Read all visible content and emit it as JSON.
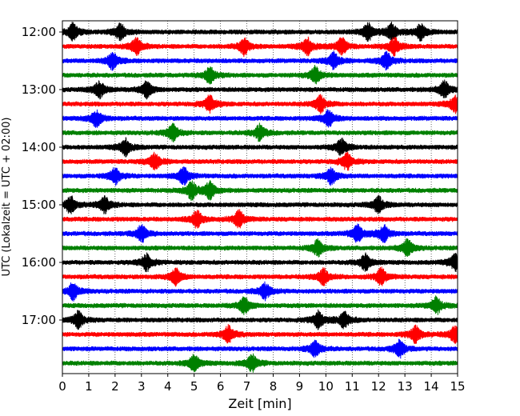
{
  "chart_data": {
    "type": "line",
    "title": "",
    "xlabel": "Zeit  [min]",
    "ylabel": "UTC (Lokalzeit = UTC + 02:00)",
    "xlim": [
      0,
      15
    ],
    "x_ticks": [
      "0",
      "1",
      "2",
      "3",
      "4",
      "5",
      "6",
      "7",
      "8",
      "9",
      "10",
      "11",
      "12",
      "13",
      "14",
      "15"
    ],
    "y_tick_labels": [
      "12:00",
      "13:00",
      "14:00",
      "15:00",
      "16:00",
      "17:00"
    ],
    "trace_start_times": [
      "12:00",
      "12:15",
      "12:30",
      "12:45",
      "13:00",
      "13:15",
      "13:30",
      "13:45",
      "14:00",
      "14:15",
      "14:30",
      "14:45",
      "15:00",
      "15:15",
      "15:30",
      "15:45",
      "16:00",
      "16:15",
      "16:30",
      "16:45",
      "17:00",
      "17:15",
      "17:30",
      "17:45"
    ],
    "trace_colors": [
      "#000000",
      "#ff0000",
      "#0000ff",
      "#008000"
    ],
    "grid_x": true,
    "legend": "none",
    "note_events": [
      {
        "trace": 0,
        "at": [
          0.4,
          2.2,
          11.6,
          12.5,
          13.6
        ]
      },
      {
        "trace": 1,
        "at": [
          2.8,
          6.9,
          9.3,
          10.6,
          12.6
        ]
      },
      {
        "trace": 2,
        "at": [
          1.9,
          10.3,
          12.3
        ]
      },
      {
        "trace": 3,
        "at": [
          5.6,
          9.6
        ]
      },
      {
        "trace": 4,
        "at": [
          1.4,
          3.2,
          14.5
        ]
      },
      {
        "trace": 5,
        "at": [
          5.6,
          9.8,
          14.9
        ]
      },
      {
        "trace": 6,
        "at": [
          1.3,
          10.1
        ]
      },
      {
        "trace": 7,
        "at": [
          4.2,
          7.5
        ]
      },
      {
        "trace": 8,
        "at": [
          2.4,
          10.6
        ]
      },
      {
        "trace": 9,
        "at": [
          3.5,
          10.8
        ]
      },
      {
        "trace": 10,
        "at": [
          2.0,
          4.6,
          10.2
        ]
      },
      {
        "trace": 11,
        "at": [
          4.9,
          5.6
        ]
      },
      {
        "trace": 12,
        "at": [
          0.3,
          1.6,
          12.0
        ]
      },
      {
        "trace": 13,
        "at": [
          5.1,
          6.7
        ]
      },
      {
        "trace": 14,
        "at": [
          3.0,
          11.2,
          12.2
        ]
      },
      {
        "trace": 15,
        "at": [
          9.7,
          13.1
        ]
      },
      {
        "trace": 16,
        "at": [
          3.2,
          11.5,
          14.9
        ]
      },
      {
        "trace": 17,
        "at": [
          4.3,
          9.9,
          12.1
        ]
      },
      {
        "trace": 18,
        "at": [
          0.4,
          7.7
        ]
      },
      {
        "trace": 19,
        "at": [
          6.9,
          14.2
        ]
      },
      {
        "trace": 20,
        "at": [
          0.6,
          9.7,
          10.7
        ]
      },
      {
        "trace": 21,
        "at": [
          6.3,
          13.4,
          14.9
        ]
      },
      {
        "trace": 22,
        "at": [
          9.6,
          12.8
        ]
      },
      {
        "trace": 23,
        "at": [
          5.0,
          7.2
        ]
      }
    ]
  }
}
